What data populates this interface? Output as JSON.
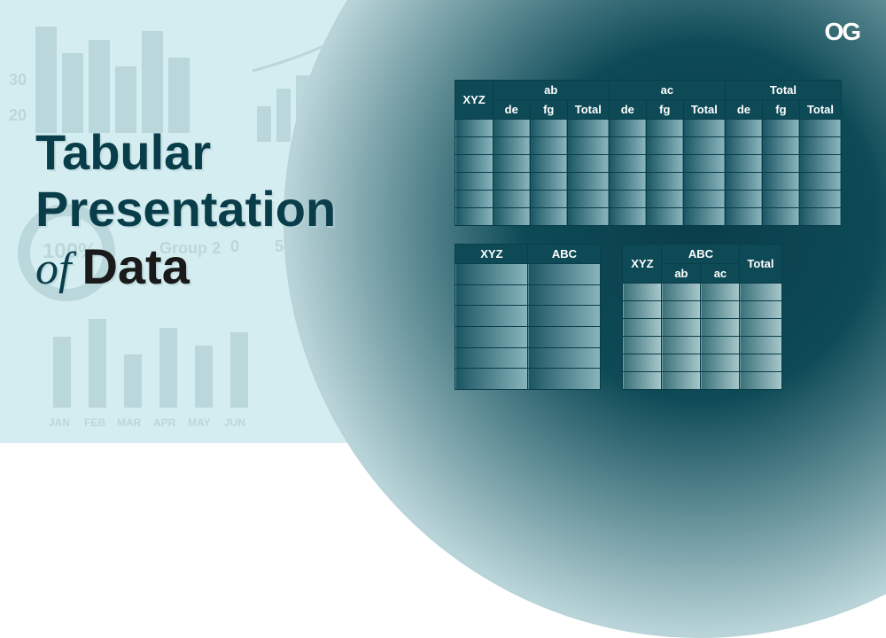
{
  "title": {
    "line1": "Tabular",
    "line2": "Presentation",
    "of": "of",
    "data": "Data"
  },
  "logo": "OG",
  "colors": {
    "bg": "#d4edf0",
    "dark": "#0a3d4a",
    "border": "#0a3d4a",
    "header": "#0d4a56"
  },
  "table1": {
    "col1": "XYZ",
    "groups": [
      "ab",
      "ac",
      "Total"
    ],
    "subcols": [
      "de",
      "fg",
      "Total"
    ],
    "body_rows": 6
  },
  "table2": {
    "cols": [
      "XYZ",
      "ABC"
    ],
    "body_rows": 6
  },
  "table3": {
    "col1": "XYZ",
    "group": "ABC",
    "subcols": [
      "ab",
      "ac"
    ],
    "last": "Total",
    "body_rows": 6
  },
  "bg": {
    "labels": [
      "30",
      "20",
      "100%",
      "Group 2",
      "0",
      "50",
      "JAN",
      "FEB",
      "MAR",
      "APR",
      "MAY",
      "JUN"
    ]
  }
}
